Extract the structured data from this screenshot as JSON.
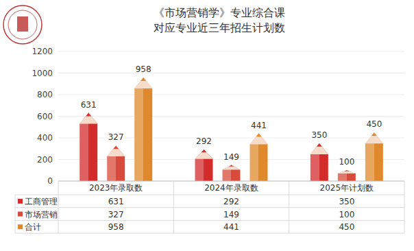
{
  "chart_data": {
    "type": "bar",
    "title": "《市场营销学》专业综合课",
    "subtitle": "对应专业近三年招生计划数",
    "categories": [
      "2023年录取数",
      "2024年录取数",
      "2025年计划数"
    ],
    "series": [
      {
        "name": "工商管理",
        "color": "#d42b2b",
        "values": [
          631,
          292,
          350
        ]
      },
      {
        "name": "市场营销",
        "color": "#d84a3a",
        "values": [
          327,
          149,
          100
        ]
      },
      {
        "name": "合计",
        "color": "#e0892c",
        "values": [
          958,
          441,
          450
        ]
      }
    ],
    "ylim": [
      0,
      1200
    ],
    "yticks": [
      0,
      200,
      400,
      600,
      800,
      1000,
      1200
    ],
    "grid": true,
    "data_labels": true
  }
}
